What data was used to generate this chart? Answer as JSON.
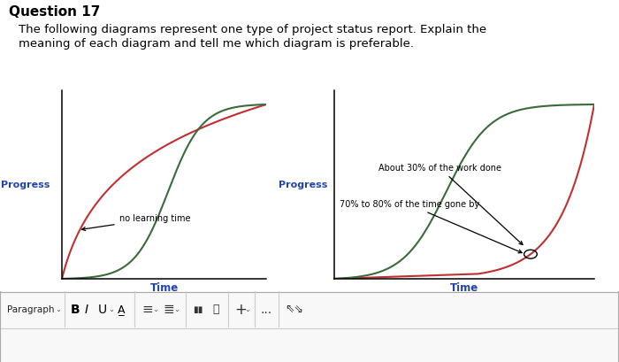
{
  "title": "Question 17",
  "subtitle_line1": "The following diagrams represent one type of project status report. Explain the",
  "subtitle_line2": "meaning of each diagram and tell me which diagram is preferable.",
  "diagram1": {
    "ylabel": "Progress",
    "xlabel": "Time",
    "annotation": "no learning time",
    "red_color": "#c03030",
    "green_color": "#3a6b3a"
  },
  "diagram2": {
    "ylabel": "Progress",
    "xlabel": "Time",
    "annotation1": "About 30% of the work done",
    "annotation2": "70% to 80% of the time gone by",
    "red_color": "#c03030",
    "green_color": "#3a6b3a"
  },
  "bg_color": "#ffffff",
  "title_fontsize": 11,
  "subtitle_fontsize": 9.5,
  "ylabel_fontsize": 8,
  "xlabel_fontsize": 8.5,
  "annot_fontsize": 7
}
